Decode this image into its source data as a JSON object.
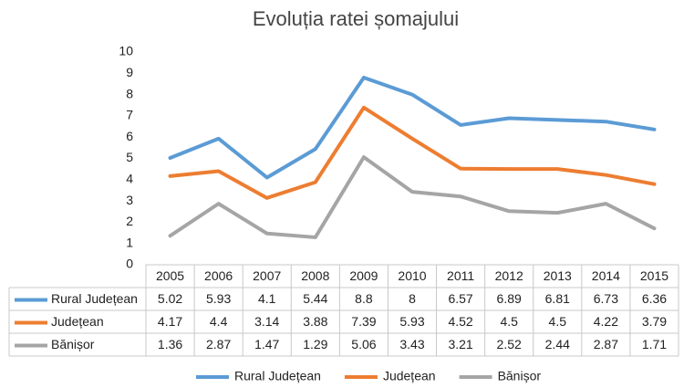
{
  "chart_data": {
    "type": "line",
    "title": "Evoluția ratei șomajului",
    "categories": [
      "2005",
      "2006",
      "2007",
      "2008",
      "2009",
      "2010",
      "2011",
      "2012",
      "2013",
      "2014",
      "2015"
    ],
    "series": [
      {
        "name": "Rural Județean",
        "color": "#5b9bd5",
        "values": [
          5.02,
          5.93,
          4.1,
          5.44,
          8.8,
          8,
          6.57,
          6.89,
          6.81,
          6.73,
          6.36
        ]
      },
      {
        "name": "Județean",
        "color": "#ed7d31",
        "values": [
          4.17,
          4.4,
          3.14,
          3.88,
          7.39,
          5.93,
          4.52,
          4.5,
          4.5,
          4.22,
          3.79
        ]
      },
      {
        "name": "Bănișor",
        "color": "#a5a5a5",
        "values": [
          1.36,
          2.87,
          1.47,
          1.29,
          5.06,
          3.43,
          3.21,
          2.52,
          2.44,
          2.87,
          1.71
        ]
      }
    ],
    "ylim": [
      0,
      10
    ],
    "yticks": [
      0,
      1,
      2,
      3,
      4,
      5,
      6,
      7,
      8,
      9,
      10
    ],
    "grid": false
  }
}
